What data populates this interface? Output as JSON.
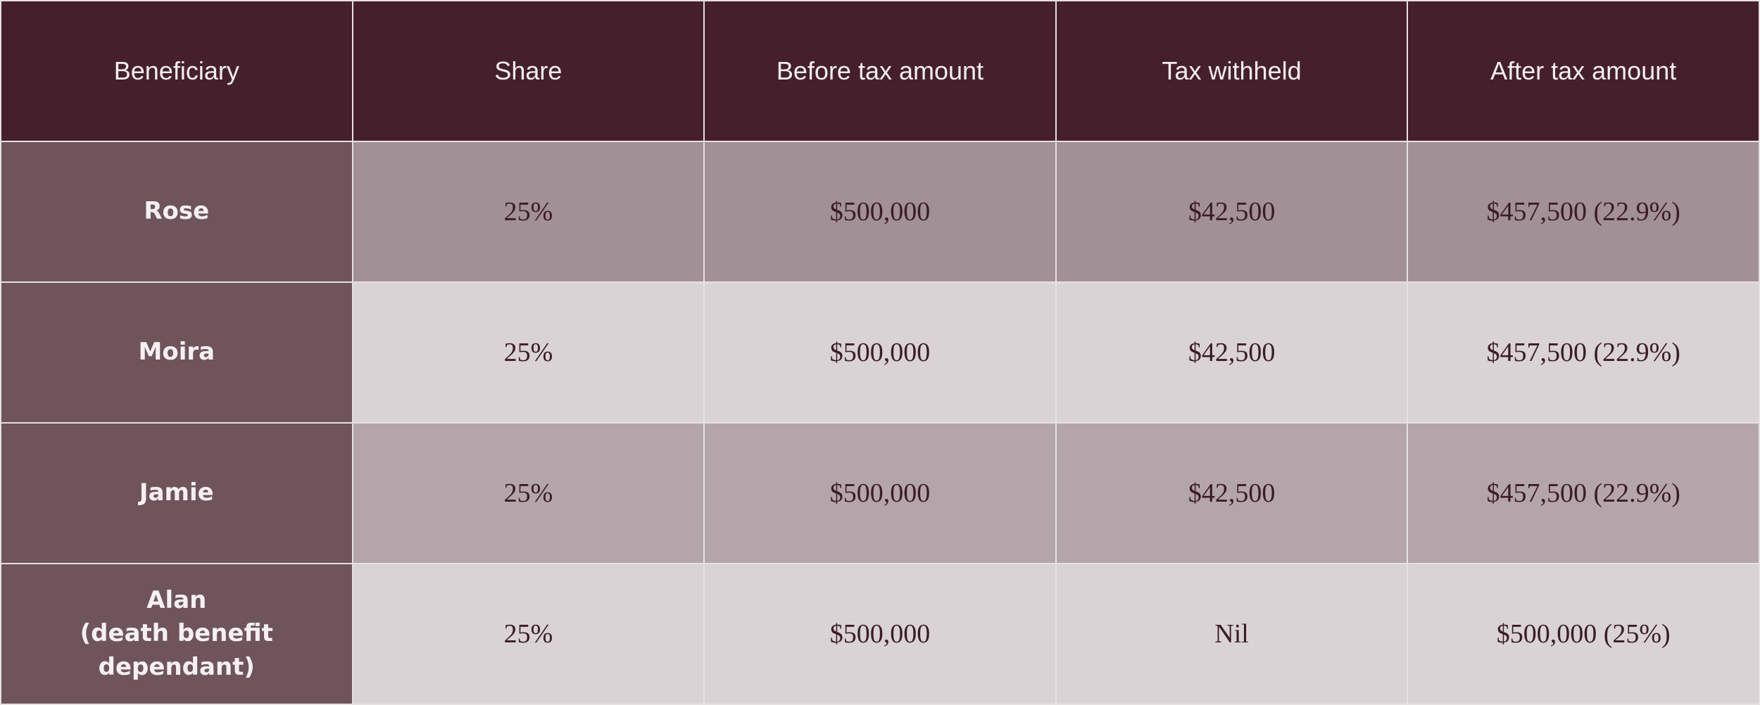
{
  "table": {
    "headers": [
      "Beneficiary",
      "Share",
      "Before tax amount",
      "Tax withheld",
      "After tax amount"
    ],
    "rows": [
      {
        "beneficiary": "Rose",
        "beneficiary_note": "",
        "share": "25%",
        "before_tax": "$500,000",
        "tax_withheld": "$42,500",
        "after_tax": "$457,500 (22.9%)"
      },
      {
        "beneficiary": "Moira",
        "beneficiary_note": "",
        "share": "25%",
        "before_tax": "$500,000",
        "tax_withheld": "$42,500",
        "after_tax": "$457,500 (22.9%)"
      },
      {
        "beneficiary": "Jamie",
        "beneficiary_note": "",
        "share": "25%",
        "before_tax": "$500,000",
        "tax_withheld": "$42,500",
        "after_tax": "$457,500 (22.9%)"
      },
      {
        "beneficiary": "Alan",
        "beneficiary_note": "(death benefit dependant)",
        "share": "25%",
        "before_tax": "$500,000",
        "tax_withheld": "Nil",
        "after_tax": "$500,000 (25%)"
      }
    ]
  },
  "colors": {
    "header_bg": "#45202c",
    "beneficiary_bg": "#6f545c",
    "row_dark": "#a19095",
    "row_light": "#d9d3d5",
    "row_mid": "#b4a5aa",
    "grid_line": "#e6e1df"
  }
}
